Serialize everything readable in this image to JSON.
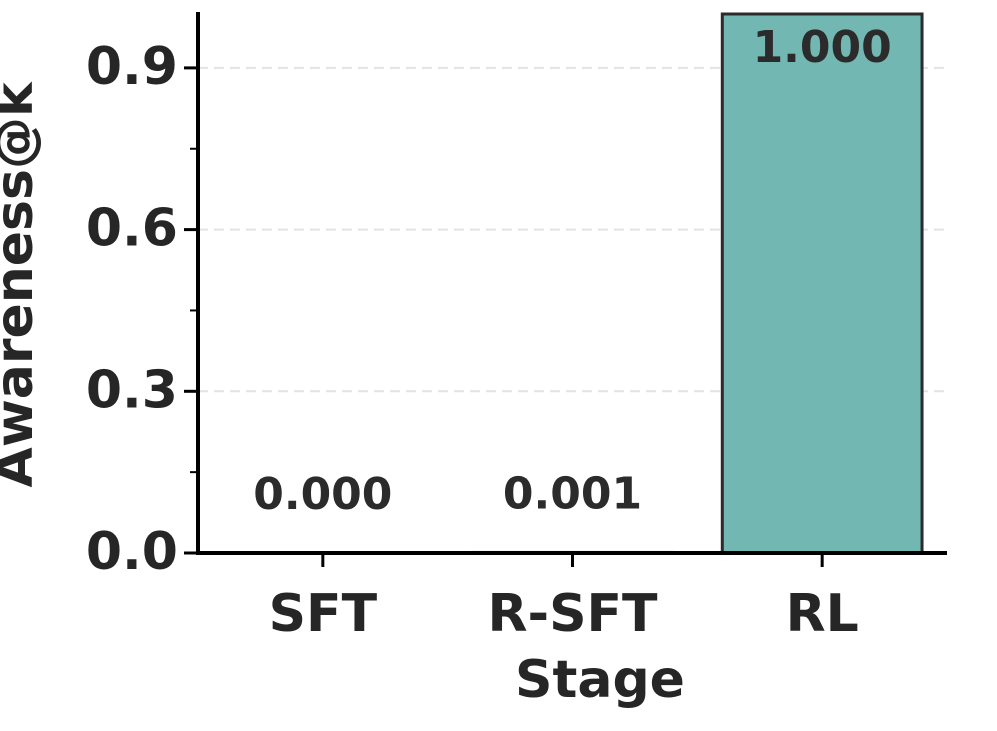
{
  "chart_data": {
    "type": "bar",
    "categories": [
      "SFT",
      "R-SFT",
      "RL"
    ],
    "values": [
      0,
      0.001,
      1
    ],
    "value_labels": [
      "0.000",
      "0.001",
      "1.000"
    ],
    "color": "#72b7b2",
    "edgecolor": "#2b2b2b",
    "xlabel": "Stage",
    "ylabel": "Awareness@k",
    "ylim": [
      0,
      1
    ],
    "yticks": [
      {
        "value": 0,
        "label": "0.0"
      },
      0.3,
      0.6,
      0.9
    ],
    "minor_yticks": [
      0.15,
      0.45,
      0.75
    ],
    "grid": true
  }
}
